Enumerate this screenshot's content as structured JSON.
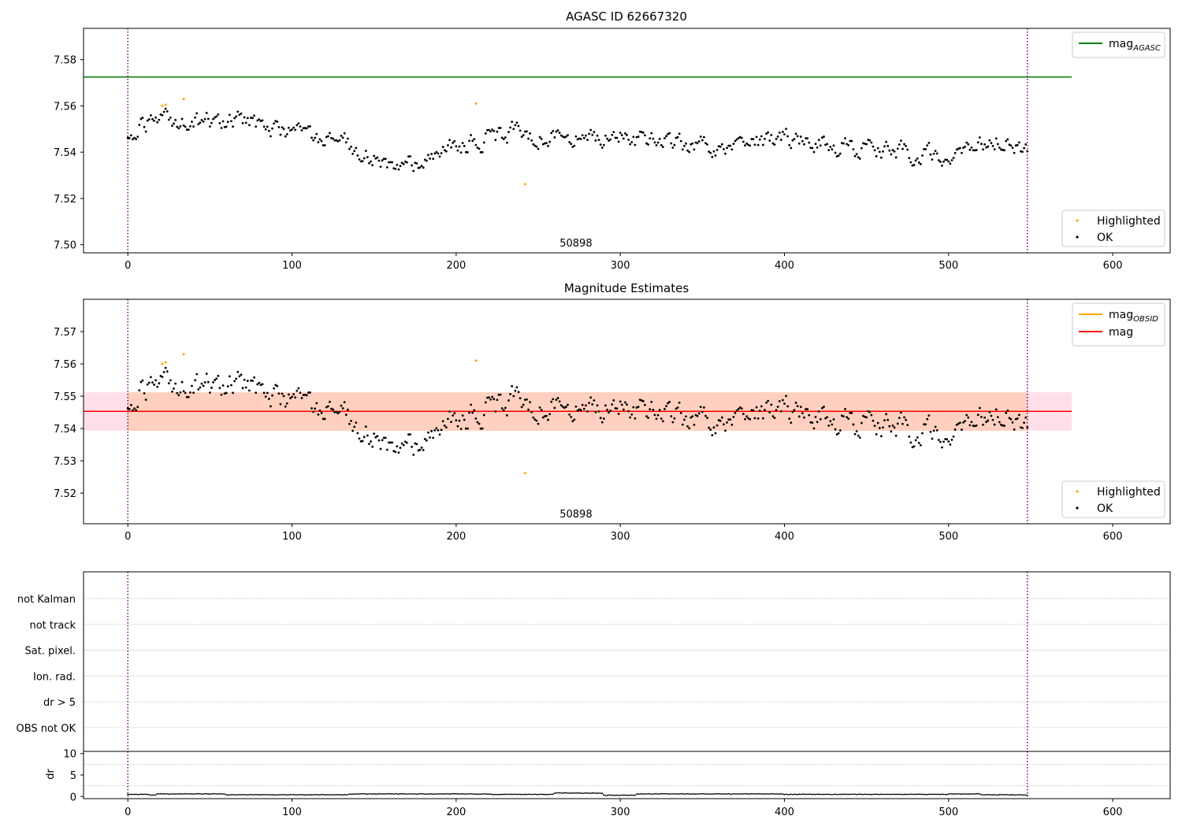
{
  "colors": {
    "ok": "#000000",
    "highlighted": "#ffa500",
    "agasc": "#008000",
    "mag": "#ff0000",
    "mag_obsid": "#ffa500",
    "band_obsid": "#ffd0bf",
    "band_mag": "#ffe0e8",
    "boundary": "#800080",
    "grid": "#b0b0b0"
  },
  "chart_data": [
    {
      "type": "scatter",
      "title": "AGASC ID 62667320",
      "xlim": [
        -27,
        635
      ],
      "ylim": [
        7.4965,
        7.5935
      ],
      "x_ticks": [
        0,
        100,
        200,
        300,
        400,
        500,
        600
      ],
      "y_ticks": [
        7.5,
        7.52,
        7.54,
        7.56,
        7.58
      ],
      "y_tick_labels": [
        "7.50",
        "7.52",
        "7.54",
        "7.56",
        "7.58"
      ],
      "obsid_label": "50898",
      "obsid_label_x": 273,
      "obsid_boundaries": [
        0,
        548
      ],
      "agasc_mag": 7.5725,
      "agasc_mag_x_range": [
        -27,
        575
      ],
      "legend_lines": [
        {
          "label": "mag",
          "sub": "AGASC",
          "color": "agasc"
        }
      ],
      "legend_points": [
        {
          "label": "Highlighted",
          "color": "highlighted"
        },
        {
          "label": "OK",
          "color": "ok"
        }
      ],
      "highlighted": [
        [
          21,
          7.56
        ],
        [
          23,
          7.5605
        ],
        [
          34,
          7.563
        ],
        [
          212,
          7.561
        ],
        [
          242,
          7.5262
        ]
      ],
      "ok_x_range": [
        0,
        548
      ],
      "ok_trend": [
        [
          0,
          7.549
        ],
        [
          10,
          7.552
        ],
        [
          25,
          7.554
        ],
        [
          40,
          7.553
        ],
        [
          55,
          7.554
        ],
        [
          75,
          7.553
        ],
        [
          90,
          7.549
        ],
        [
          110,
          7.547
        ],
        [
          125,
          7.545
        ],
        [
          140,
          7.542
        ],
        [
          160,
          7.535
        ],
        [
          180,
          7.536
        ],
        [
          195,
          7.541
        ],
        [
          215,
          7.545
        ],
        [
          235,
          7.549
        ],
        [
          255,
          7.547
        ],
        [
          275,
          7.548
        ],
        [
          300,
          7.546
        ],
        [
          320,
          7.545
        ],
        [
          340,
          7.543
        ],
        [
          360,
          7.541
        ],
        [
          380,
          7.545
        ],
        [
          400,
          7.546
        ],
        [
          420,
          7.544
        ],
        [
          440,
          7.542
        ],
        [
          460,
          7.541
        ],
        [
          480,
          7.539
        ],
        [
          500,
          7.538
        ],
        [
          520,
          7.542
        ],
        [
          535,
          7.546
        ],
        [
          548,
          7.542
        ]
      ]
    },
    {
      "type": "scatter",
      "title": "Magnitude Estimates",
      "xlim": [
        -27,
        635
      ],
      "ylim": [
        7.5105,
        7.58
      ],
      "x_ticks": [
        0,
        100,
        200,
        300,
        400,
        500,
        600
      ],
      "y_ticks": [
        7.52,
        7.53,
        7.54,
        7.55,
        7.56,
        7.57
      ],
      "y_tick_labels": [
        "7.52",
        "7.53",
        "7.54",
        "7.55",
        "7.56",
        "7.57"
      ],
      "obsid_label": "50898",
      "obsid_label_x": 273,
      "obsid_boundaries": [
        0,
        548
      ],
      "mag": 7.5453,
      "mag_band": [
        7.5393,
        7.5512
      ],
      "mag_x_range": [
        -27,
        575
      ],
      "mag_obsid": 7.5453,
      "mag_obsid_band": [
        7.5393,
        7.5512
      ],
      "mag_obsid_x_range": [
        0,
        548
      ],
      "legend_lines": [
        {
          "label": "mag",
          "sub": "OBSID",
          "color": "mag_obsid"
        },
        {
          "label": "mag",
          "sub": "",
          "color": "mag"
        }
      ],
      "legend_points": [
        {
          "label": "Highlighted",
          "color": "highlighted"
        },
        {
          "label": "OK",
          "color": "ok"
        }
      ],
      "highlighted": [
        [
          21,
          7.56
        ],
        [
          23,
          7.5605
        ],
        [
          34,
          7.563
        ],
        [
          212,
          7.561
        ],
        [
          242,
          7.5262
        ]
      ],
      "ok_x_range": [
        0,
        548
      ],
      "ok_trend": [
        [
          0,
          7.549
        ],
        [
          10,
          7.552
        ],
        [
          25,
          7.554
        ],
        [
          40,
          7.553
        ],
        [
          55,
          7.554
        ],
        [
          75,
          7.553
        ],
        [
          90,
          7.549
        ],
        [
          110,
          7.547
        ],
        [
          125,
          7.545
        ],
        [
          140,
          7.542
        ],
        [
          160,
          7.535
        ],
        [
          180,
          7.536
        ],
        [
          195,
          7.541
        ],
        [
          215,
          7.545
        ],
        [
          235,
          7.549
        ],
        [
          255,
          7.547
        ],
        [
          275,
          7.548
        ],
        [
          300,
          7.546
        ],
        [
          320,
          7.545
        ],
        [
          340,
          7.543
        ],
        [
          360,
          7.541
        ],
        [
          380,
          7.545
        ],
        [
          400,
          7.546
        ],
        [
          420,
          7.544
        ],
        [
          440,
          7.542
        ],
        [
          460,
          7.541
        ],
        [
          480,
          7.539
        ],
        [
          500,
          7.538
        ],
        [
          520,
          7.542
        ],
        [
          535,
          7.546
        ],
        [
          548,
          7.542
        ]
      ]
    },
    {
      "type": "scatter",
      "xlim": [
        -27,
        635
      ],
      "flag_categories": [
        "not Kalman",
        "not track",
        "Sat. pixel.",
        "Ion. rad.",
        "dr > 5",
        "OBS not OK"
      ],
      "flag_points": [],
      "obsid_boundaries": [
        0,
        548
      ]
    },
    {
      "type": "line",
      "ylabel": "dr",
      "xlim": [
        -27,
        635
      ],
      "ylim": [
        -0.5,
        10.5
      ],
      "x_ticks": [
        0,
        100,
        200,
        300,
        400,
        500,
        600
      ],
      "y_ticks": [
        0,
        5,
        10
      ],
      "y_tick_labels": [
        "0",
        "5",
        "10"
      ],
      "obsid_boundaries": [
        0,
        548
      ],
      "dr_x_range": [
        0,
        548
      ],
      "dr_segments": [
        [
          0,
          0.5
        ],
        [
          14,
          0.3
        ],
        [
          18,
          0.6
        ],
        [
          60,
          0.4
        ],
        [
          135,
          0.6
        ],
        [
          220,
          0.5
        ],
        [
          260,
          0.8
        ],
        [
          290,
          0.3
        ],
        [
          310,
          0.6
        ],
        [
          400,
          0.5
        ],
        [
          500,
          0.6
        ],
        [
          520,
          0.4
        ],
        [
          548,
          0.2
        ]
      ]
    }
  ]
}
